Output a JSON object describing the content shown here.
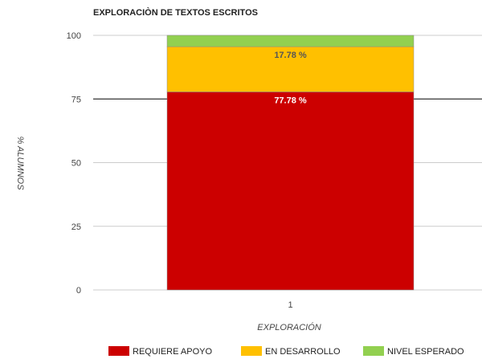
{
  "chart_data": {
    "type": "bar",
    "stacked": true,
    "title": "EXPLORACIÒN DE TEXTOS ESCRITOS",
    "xlabel": "EXPLORACIÓN",
    "ylabel": "% ALUMNOS",
    "categories": [
      "1"
    ],
    "ylim": [
      0,
      100
    ],
    "yticks": [
      "0",
      "25",
      "50",
      "75",
      "100"
    ],
    "grid": true,
    "legend_position": "bottom",
    "series": [
      {
        "name": "REQUIERE APOYO",
        "values": [
          77.78
        ],
        "label": "77.78 %",
        "color": "#cc0000",
        "label_color": "#ffffff"
      },
      {
        "name": "EN DESARROLLO",
        "values": [
          17.78
        ],
        "label": "17.78 %",
        "color": "#ffc000",
        "label_color": "#555555"
      },
      {
        "name": "NIVEL ESPERADO",
        "values": [
          4.44
        ],
        "label": "",
        "color": "#92d050",
        "label_color": "#555555"
      }
    ]
  }
}
